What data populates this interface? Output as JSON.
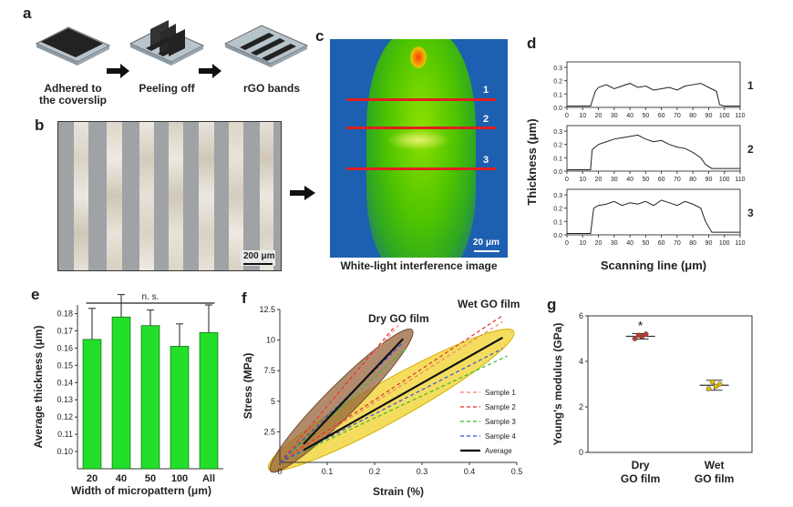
{
  "panel_labels": {
    "a": "a",
    "b": "b",
    "c": "c",
    "d": "d",
    "e": "e",
    "f": "f",
    "g": "g"
  },
  "panel_a": {
    "steps": [
      {
        "caption_line1": "Adhered to",
        "caption_line2": "the coverslip"
      },
      {
        "caption_line1": "Peeling off",
        "caption_line2": ""
      },
      {
        "caption_line1": "rGO bands",
        "caption_line2": ""
      }
    ]
  },
  "panel_b": {
    "scale_bar": "200 μm"
  },
  "panel_c": {
    "line_labels": [
      "1",
      "2",
      "3"
    ],
    "scale_bar": "20 μm",
    "caption": "White-light interference image"
  },
  "chart_data": [
    {
      "id": "d",
      "type": "line",
      "ylabel": "Thickness (μm)",
      "xlabel": "Scanning line (μm)",
      "xticks": [
        "0",
        "10",
        "20",
        "30",
        "40",
        "50",
        "60",
        "70",
        "80",
        "90",
        "100",
        "110"
      ],
      "yticks": [
        "0.0",
        "0.1",
        "0.2",
        "0.3"
      ],
      "ylim": [
        0,
        0.3
      ],
      "xlim": [
        0,
        110
      ],
      "series": [
        {
          "name": "1",
          "x": [
            0,
            15,
            18,
            20,
            25,
            30,
            35,
            40,
            45,
            50,
            55,
            60,
            65,
            70,
            75,
            80,
            85,
            90,
            95,
            97,
            100,
            110
          ],
          "y": [
            0.01,
            0.01,
            0.12,
            0.15,
            0.17,
            0.14,
            0.16,
            0.18,
            0.15,
            0.16,
            0.13,
            0.14,
            0.15,
            0.13,
            0.16,
            0.17,
            0.18,
            0.15,
            0.12,
            0.02,
            0.01,
            0.01
          ]
        },
        {
          "name": "2",
          "x": [
            0,
            15,
            16,
            20,
            25,
            30,
            35,
            40,
            45,
            50,
            55,
            60,
            65,
            70,
            75,
            80,
            85,
            88,
            92,
            110
          ],
          "y": [
            0.01,
            0.01,
            0.16,
            0.2,
            0.22,
            0.24,
            0.25,
            0.26,
            0.27,
            0.24,
            0.22,
            0.23,
            0.2,
            0.18,
            0.17,
            0.14,
            0.1,
            0.05,
            0.02,
            0.02
          ]
        },
        {
          "name": "3",
          "x": [
            0,
            15,
            17,
            20,
            25,
            30,
            35,
            40,
            45,
            50,
            55,
            60,
            65,
            70,
            75,
            80,
            85,
            88,
            92,
            110
          ],
          "y": [
            0.01,
            0.01,
            0.2,
            0.22,
            0.23,
            0.25,
            0.22,
            0.24,
            0.23,
            0.25,
            0.22,
            0.26,
            0.24,
            0.22,
            0.25,
            0.23,
            0.2,
            0.1,
            0.02,
            0.02
          ]
        }
      ]
    },
    {
      "id": "e",
      "type": "bar",
      "ylabel": "Average thickness (μm)",
      "xlabel": "Width of micropattern (μm)",
      "categories": [
        "20",
        "40",
        "50",
        "100",
        "All"
      ],
      "values": [
        0.165,
        0.178,
        0.173,
        0.161,
        0.169
      ],
      "errors": [
        0.018,
        0.013,
        0.009,
        0.013,
        0.016
      ],
      "ylim": [
        0.09,
        0.185
      ],
      "yticks": [
        "0.10",
        "0.11",
        "0.12",
        "0.13",
        "0.14",
        "0.15",
        "0.16",
        "0.17",
        "0.18"
      ],
      "annotation": "n. s.",
      "bar_color": "#22e02a"
    },
    {
      "id": "f",
      "type": "line",
      "ylabel": "Stress (MPa)",
      "xlabel": "Strain (%)",
      "xlim": [
        0,
        0.5
      ],
      "ylim": [
        0,
        12.5
      ],
      "xticks": [
        "0",
        "0.1",
        "0.2",
        "0.3",
        "0.4",
        "0.5"
      ],
      "yticks": [
        "2.5",
        "5",
        "7.5",
        "10",
        "12.5"
      ],
      "group_labels": [
        "Dry GO film",
        "Wet GO film"
      ],
      "legend": [
        "Sample 1",
        "Sample 2",
        "Sample 3",
        "Sample 4",
        "Average"
      ],
      "series_colors": [
        "#f08070",
        "#e0302a",
        "#2fbf2f",
        "#3050e0",
        "#000000"
      ],
      "dry": {
        "average": {
          "x": [
            0.05,
            0.26
          ],
          "y": [
            1.5,
            10.1
          ]
        },
        "samples": [
          {
            "x": [
              0,
              0.25
            ],
            "y": [
              0,
              11.2
            ]
          },
          {
            "x": [
              0,
              0.24
            ],
            "y": [
              0,
              11.0
            ]
          },
          {
            "x": [
              0,
              0.27
            ],
            "y": [
              0,
              9.4
            ]
          },
          {
            "x": [
              0,
              0.26
            ],
            "y": [
              0,
              9.8
            ]
          }
        ]
      },
      "wet": {
        "average": {
          "x": [
            0.05,
            0.47
          ],
          "y": [
            1.0,
            10.2
          ]
        },
        "samples": [
          {
            "x": [
              0,
              0.47
            ],
            "y": [
              0,
              11.5
            ]
          },
          {
            "x": [
              0,
              0.47
            ],
            "y": [
              0,
              12.0
            ]
          },
          {
            "x": [
              0,
              0.48
            ],
            "y": [
              0,
              8.7
            ]
          },
          {
            "x": [
              0,
              0.47
            ],
            "y": [
              0,
              9.3
            ]
          }
        ]
      }
    },
    {
      "id": "g",
      "type": "scatter",
      "ylabel": "Young's modulus (GPa)",
      "categories": [
        {
          "line1": "Dry",
          "line2": "GO film"
        },
        {
          "line1": "Wet",
          "line2": "GO film"
        }
      ],
      "ylim": [
        0,
        6
      ],
      "yticks": [
        "0",
        "2",
        "4",
        "6"
      ],
      "groups": [
        {
          "mean": 5.1,
          "sd": 0.12,
          "points": [
            5.0,
            5.15,
            5.1,
            5.2
          ],
          "color": "#c0392b"
        },
        {
          "mean": 2.95,
          "sd": 0.22,
          "points": [
            2.8,
            3.1,
            2.9,
            3.0
          ],
          "color": "#e6b800"
        }
      ],
      "annotation": "*"
    }
  ]
}
